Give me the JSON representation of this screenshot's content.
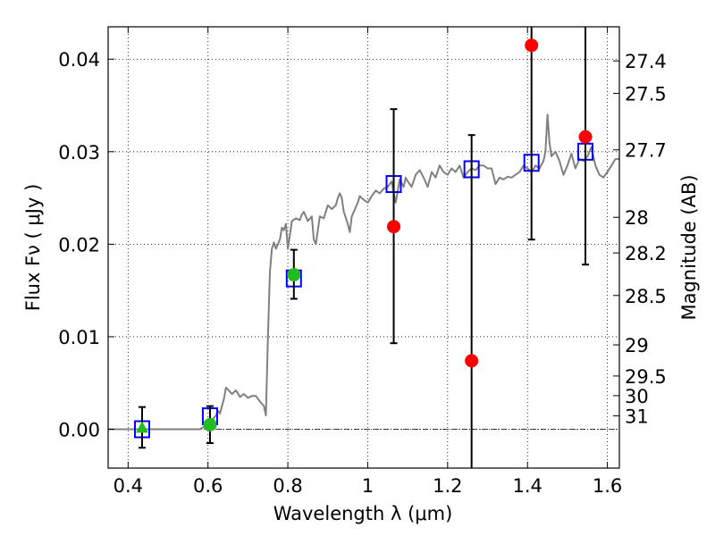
{
  "chart_data": {
    "type": "scatter",
    "title": "",
    "xlabel": "Wavelength  λ (μm)",
    "ylabel": "Flux  Fν  ( μJy )",
    "y2label": "Magnitude (AB)",
    "xlim": [
      0.35,
      1.63
    ],
    "ylim": [
      -0.0042,
      0.0435
    ],
    "grid": true,
    "grid_style": "dotted",
    "x_ticks": [
      {
        "value": 0.4,
        "label": "0.4"
      },
      {
        "value": 0.6,
        "label": "0.6"
      },
      {
        "value": 0.8,
        "label": "0.8"
      },
      {
        "value": 1.0,
        "label": "1"
      },
      {
        "value": 1.2,
        "label": "1.2"
      },
      {
        "value": 1.4,
        "label": "1.4"
      },
      {
        "value": 1.6,
        "label": "1.6"
      }
    ],
    "y_ticks": [
      {
        "value": 0.0,
        "label": "0.00"
      },
      {
        "value": 0.01,
        "label": "0.01"
      },
      {
        "value": 0.02,
        "label": "0.02"
      },
      {
        "value": 0.03,
        "label": "0.03"
      },
      {
        "value": 0.04,
        "label": "0.04"
      }
    ],
    "y2_ticks": [
      {
        "mag": 27.4,
        "label": "27.4"
      },
      {
        "mag": 27.5,
        "label": "27.5"
      },
      {
        "mag": 27.7,
        "label": "27.7"
      },
      {
        "mag": 28.0,
        "label": "28"
      },
      {
        "mag": 28.2,
        "label": "28.2"
      },
      {
        "mag": 28.5,
        "label": "28.5"
      },
      {
        "mag": 29.0,
        "label": "29"
      },
      {
        "mag": 29.5,
        "label": "29.5"
      },
      {
        "mag": 30.0,
        "label": "30"
      },
      {
        "mag": 31.0,
        "label": "31"
      }
    ],
    "zero_line": true,
    "series": [
      {
        "kind": "line",
        "color": "#808080",
        "x": [
          0.35,
          0.4,
          0.45,
          0.5,
          0.55,
          0.58,
          0.6,
          0.62,
          0.625,
          0.63,
          0.64,
          0.645,
          0.65,
          0.66,
          0.67,
          0.68,
          0.69,
          0.7,
          0.71,
          0.72,
          0.73,
          0.74,
          0.745,
          0.75,
          0.755,
          0.76,
          0.765,
          0.77,
          0.78,
          0.785,
          0.79,
          0.795,
          0.8,
          0.81,
          0.82,
          0.83,
          0.835,
          0.84,
          0.85,
          0.86,
          0.865,
          0.87,
          0.88,
          0.89,
          0.895,
          0.9,
          0.91,
          0.92,
          0.925,
          0.93,
          0.935,
          0.94,
          0.95,
          0.955,
          0.96,
          0.97,
          0.975,
          0.98,
          0.99,
          1.0,
          1.01,
          1.02,
          1.03,
          1.04,
          1.05,
          1.06,
          1.065,
          1.07,
          1.08,
          1.09,
          1.095,
          1.1,
          1.11,
          1.12,
          1.13,
          1.14,
          1.15,
          1.16,
          1.17,
          1.18,
          1.19,
          1.2,
          1.21,
          1.22,
          1.23,
          1.24,
          1.25,
          1.26,
          1.27,
          1.28,
          1.29,
          1.3,
          1.31,
          1.32,
          1.33,
          1.34,
          1.35,
          1.36,
          1.37,
          1.38,
          1.39,
          1.4,
          1.41,
          1.42,
          1.43,
          1.44,
          1.445,
          1.45,
          1.455,
          1.46,
          1.47,
          1.48,
          1.49,
          1.5,
          1.51,
          1.52,
          1.53,
          1.54,
          1.55,
          1.56,
          1.57,
          1.58,
          1.59,
          1.6,
          1.61,
          1.62,
          1.63
        ],
        "y": [
          0.0,
          0.0,
          0.0,
          0.0,
          0.0,
          0.0,
          0.0005,
          0.0015,
          0.002,
          0.0017,
          0.0033,
          0.0045,
          0.0043,
          0.0038,
          0.0042,
          0.0035,
          0.0038,
          0.0034,
          0.0036,
          0.0036,
          0.003,
          0.0025,
          0.0015,
          0.01,
          0.017,
          0.0195,
          0.0202,
          0.0195,
          0.0205,
          0.0218,
          0.0215,
          0.0222,
          0.0195,
          0.0225,
          0.0228,
          0.0226,
          0.0232,
          0.0235,
          0.0225,
          0.023,
          0.0205,
          0.02,
          0.023,
          0.0228,
          0.0235,
          0.0242,
          0.0238,
          0.0242,
          0.025,
          0.0255,
          0.025,
          0.0235,
          0.0222,
          0.0213,
          0.023,
          0.024,
          0.0245,
          0.0252,
          0.0248,
          0.0245,
          0.0252,
          0.0258,
          0.0255,
          0.026,
          0.0262,
          0.0268,
          0.0255,
          0.0245,
          0.027,
          0.0262,
          0.0272,
          0.0268,
          0.0262,
          0.0275,
          0.028,
          0.0272,
          0.0262,
          0.0278,
          0.0272,
          0.0285,
          0.0278,
          0.0275,
          0.0282,
          0.0278,
          0.0285,
          0.0272,
          0.0278,
          0.0282,
          0.028,
          0.0285,
          0.0285,
          0.0282,
          0.0282,
          0.0265,
          0.0272,
          0.027,
          0.0273,
          0.0272,
          0.0275,
          0.0278,
          0.0285,
          0.0282,
          0.0278,
          0.0285,
          0.0282,
          0.029,
          0.03,
          0.034,
          0.031,
          0.0295,
          0.03,
          0.029,
          0.0275,
          0.0285,
          0.0298,
          0.0282,
          0.0292,
          0.029,
          0.0295,
          0.0305,
          0.0285,
          0.0275,
          0.0272,
          0.0278,
          0.0285,
          0.0292,
          0.0292
        ]
      },
      {
        "kind": "squares",
        "color": "#0000ff",
        "x": [
          0.435,
          0.605,
          0.815,
          1.065,
          1.26,
          1.41,
          1.545
        ],
        "y": [
          0.0,
          0.0014,
          0.0163,
          0.0265,
          0.0281,
          0.0288,
          0.03
        ]
      },
      {
        "kind": "circles",
        "color": "#ff0000",
        "x": [
          1.065,
          1.26,
          1.41,
          1.545
        ],
        "y": [
          0.0219,
          0.0074,
          0.0415,
          0.0316
        ],
        "yerr_low": [
          0.0093,
          -0.0042,
          0.0205,
          0.0178
        ],
        "yerr_high": [
          0.0346,
          0.0318,
          0.0435,
          0.0435
        ]
      },
      {
        "kind": "circles",
        "color": "#22bb22",
        "x": [
          0.605,
          0.815
        ],
        "y": [
          0.0005,
          0.0167
        ],
        "yerr_low": [
          -0.0015,
          0.0141
        ],
        "yerr_high": [
          0.0025,
          0.0194
        ]
      },
      {
        "kind": "triangles",
        "color": "#22bb22",
        "x": [
          0.435
        ],
        "y": [
          0.0002
        ],
        "yerr_low": [
          -0.002
        ],
        "yerr_high": [
          0.0024
        ]
      }
    ]
  }
}
